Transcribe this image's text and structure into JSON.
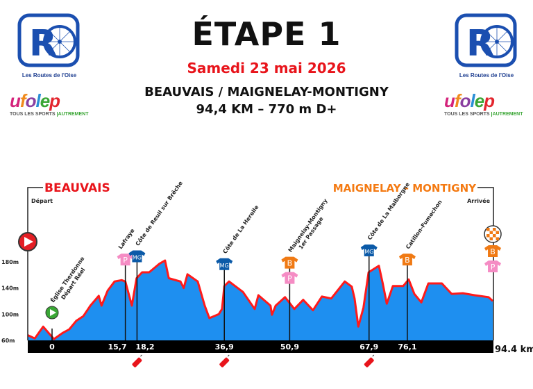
{
  "header": {
    "title": "ÉTAPE 1",
    "date": "Samedi 23 mai 2026",
    "route": "BEAUVAIS / MAIGNELAY-MONTIGNY",
    "distance_elevation": "94,4 KM – 770 m D+"
  },
  "logos": {
    "organizer": "Les Routes de l'Oise",
    "organizer_mark": "RD",
    "federation": "ufolep",
    "federation_tagline": "TOUS LES SPORTS",
    "federation_tagline_accent": "AUTREMENT"
  },
  "colors": {
    "accent_red": "#e8141b",
    "finish_orange": "#f47a12",
    "profile_fill": "#1e8ff0",
    "profile_line": "#ff1a1a",
    "mountain_jersey": "#0b5aa8",
    "points_jersey": "#f58cc4",
    "bonus_jersey": "#f07a14",
    "start_green": "#3aa635"
  },
  "chart_data": {
    "type": "area",
    "title": "",
    "xlabel": "",
    "ylabel": "",
    "x_unit": "km",
    "xlim": [
      -5.2,
      94.4
    ],
    "ylim": [
      60,
      200
    ],
    "yticks": [
      {
        "value": 60,
        "label": "60m"
      },
      {
        "value": 100,
        "label": "100m"
      },
      {
        "value": 140,
        "label": "140m"
      },
      {
        "value": 180,
        "label": "180m"
      }
    ],
    "xticks": [
      {
        "value": 0,
        "label": "0"
      },
      {
        "value": 15.7,
        "label": "15,7"
      },
      {
        "value": 18.2,
        "label": "18,2"
      },
      {
        "value": 36.9,
        "label": "36,9"
      },
      {
        "value": 50.9,
        "label": "50,9"
      },
      {
        "value": 67.9,
        "label": "67,9"
      },
      {
        "value": 76.1,
        "label": "76,1"
      }
    ],
    "end_label": "94.4 km",
    "start": {
      "town": "BEAUVAIS",
      "label": "Départ"
    },
    "finish": {
      "town": "MAIGNELAY - MONTIGNY",
      "label": "Arrivée"
    },
    "profile": [
      [
        -5.2,
        68
      ],
      [
        -3.7,
        63
      ],
      [
        -1.9,
        81
      ],
      [
        -0.7,
        71
      ],
      [
        0.4,
        62
      ],
      [
        2.2,
        71
      ],
      [
        3.7,
        77
      ],
      [
        5.2,
        90
      ],
      [
        6.7,
        97
      ],
      [
        8.2,
        113
      ],
      [
        10.0,
        128
      ],
      [
        10.6,
        113
      ],
      [
        11.9,
        136
      ],
      [
        13.4,
        150
      ],
      [
        14.9,
        152
      ],
      [
        15.7,
        150
      ],
      [
        17.1,
        113
      ],
      [
        18.1,
        155
      ],
      [
        19.3,
        164
      ],
      [
        20.8,
        164
      ],
      [
        23.0,
        177
      ],
      [
        24.2,
        182
      ],
      [
        25.0,
        155
      ],
      [
        27.5,
        150
      ],
      [
        28.2,
        140
      ],
      [
        29.0,
        161
      ],
      [
        31.2,
        150
      ],
      [
        32.7,
        113
      ],
      [
        33.7,
        94
      ],
      [
        35.7,
        100
      ],
      [
        36.4,
        108
      ],
      [
        36.9,
        143
      ],
      [
        37.9,
        150
      ],
      [
        40.9,
        134
      ],
      [
        43.4,
        108
      ],
      [
        44.2,
        129
      ],
      [
        46.8,
        113
      ],
      [
        47.1,
        99
      ],
      [
        47.9,
        113
      ],
      [
        49.9,
        126
      ],
      [
        51.9,
        108
      ],
      [
        53.8,
        122
      ],
      [
        55.9,
        106
      ],
      [
        57.8,
        127
      ],
      [
        59.8,
        124
      ],
      [
        62.7,
        150
      ],
      [
        64.2,
        142
      ],
      [
        64.8,
        124
      ],
      [
        65.6,
        81
      ],
      [
        66.7,
        110
      ],
      [
        67.8,
        164
      ],
      [
        70.0,
        174
      ],
      [
        70.8,
        148
      ],
      [
        71.7,
        116
      ],
      [
        73.0,
        143
      ],
      [
        75.2,
        143
      ],
      [
        76.4,
        153
      ],
      [
        77.6,
        131
      ],
      [
        79.1,
        118
      ],
      [
        80.6,
        147
      ],
      [
        83.5,
        147
      ],
      [
        85.6,
        131
      ],
      [
        88.0,
        132
      ],
      [
        90.5,
        129
      ],
      [
        93.5,
        126
      ],
      [
        94.4,
        120
      ]
    ],
    "waypoints": [
      {
        "km": 0,
        "lines": [
          "Église Therdonne",
          "Départ Réel"
        ],
        "marker": "start-flag",
        "elev": 76
      },
      {
        "km": 15.7,
        "lines": [
          "Lafraye"
        ],
        "jerseys": [
          "P"
        ],
        "elev": 150
      },
      {
        "km": 18.2,
        "lines": [
          "Côte de Reuil sur Brêche"
        ],
        "jerseys": [
          "MG"
        ],
        "elev": 155
      },
      {
        "km": 36.9,
        "lines": [
          "Côte de La Herelle"
        ],
        "jerseys": [
          "MG"
        ],
        "elev": 143
      },
      {
        "km": 50.9,
        "lines": [
          "Maignelay-Montigny",
          "1er Passage"
        ],
        "jerseys": [
          "B",
          "P"
        ],
        "elev": 122
      },
      {
        "km": 67.9,
        "lines": [
          "Côte de La Malborgne"
        ],
        "jerseys": [
          "MG"
        ],
        "elev": 164
      },
      {
        "km": 76.1,
        "lines": [
          "Catillon-Fumechon"
        ],
        "jerseys": [
          "B"
        ],
        "elev": 150
      },
      {
        "km": 94.4,
        "lines": [],
        "jerseys": [
          "B",
          "P"
        ],
        "marker": "finish-flag",
        "elev": 120
      }
    ],
    "feed_zones_km": [
      18.2,
      36.9,
      67.9
    ]
  }
}
